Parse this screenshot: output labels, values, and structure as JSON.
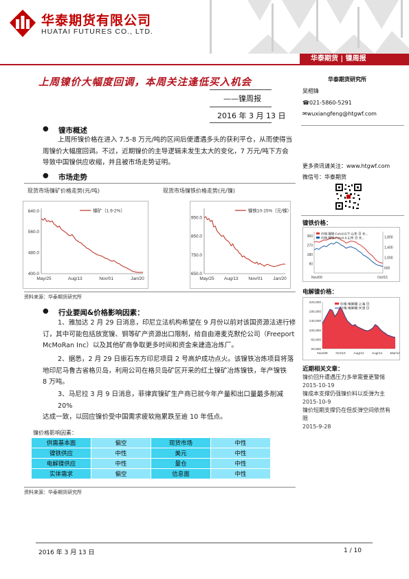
{
  "header": {
    "company_cn": "华泰期货有限公司",
    "company_en": "HUATAI FUTURES CO., LTD.",
    "banner": "华泰期货 | 镍周报",
    "brand_color": "#b4141e"
  },
  "title": {
    "main": "上周镍价大幅度回调，本周关注逢低买入机会",
    "type": "——镍周报",
    "date": "2016 年 3 月 13 日"
  },
  "sections": {
    "overview": {
      "heading": "镍市概述",
      "lines": [
        "上周所镍价格在进入 7.5-8 万元/吨的区间后便遭遇多头的获利平仓，从而使得当",
        "周镍价大幅度回调。不过，近期镍价的主导逻辑未发生太大的变化，7 万元/吨下方会",
        "导致中国镍供应收缩，并且被市场走势证明。"
      ]
    },
    "trend": {
      "heading": "市场走势",
      "caption_left": "现货市场镍矿价格走势(元/吨)",
      "caption_right": "现货市场镍铁价格走势(元/镍)",
      "source": "资料来源：华泰期货研究所"
    },
    "news": {
      "heading": "行业要闻&价格影响因素：",
      "p1": [
        "1、雅加达 2 月 29 日消息，印尼立法机构希望在 9 月份以前对该国资源法进行修",
        "订，其中可能包括放宽镍、铜等矿产资源出口限制，给自由港麦克默伦公司（Freeport",
        "McMoRan Inc）以及其他矿商争取更多时间和资金来建造冶炼厂。"
      ],
      "p2": [
        "2、据悉，2 月 29 日振石东方印尼项目 2 号高炉成功点火。该镍铁冶炼项目将落",
        "地印尼马鲁古省格贝岛，利用公司在格贝岛矿区开采的红土镍矿冶炼镍铁，年产镍铁",
        "8 万吨。"
      ],
      "p3": [
        "3、马尼拉 3 月 9 日消息，菲律宾镍矿生产商已就今年产量和出口量最多削减 20%",
        "达成一致，以回应镍价受中国需求疲软拖累跌至逾 10 年低点。"
      ]
    },
    "factors": {
      "caption": "镍价格影响因素：",
      "rows": [
        [
          "供需基本面",
          "偏空",
          "现货市场",
          "中性"
        ],
        [
          "镍铁供应",
          "中性",
          "美元",
          "中性"
        ],
        [
          "电解镍供应",
          "中性",
          "量仓",
          "中性"
        ],
        [
          "实体需求",
          "偏空",
          "信息面",
          "中性"
        ]
      ],
      "source": "资料来源：华泰期货研究所"
    }
  },
  "sidebar": {
    "institute": "华泰期货研究所",
    "analyst": "吴相锋",
    "phone": "021-5860-5291",
    "email": "wuxiangfeng@htgwf.com",
    "more_info": "更多资讯请关注：www.htgwf.com",
    "wechat": "微信号：华泰期货",
    "ferro_heading": "镍铁价格：",
    "elec_heading": "电解镍价格：",
    "recent_heading": "近期相关文章：",
    "articles": [
      {
        "title": "镍价回升遭遇压力多单需要更警惕",
        "date": "2015-10-19"
      },
      {
        "title": "镍成本支撑仍强镍价料以反弹为主",
        "date": "2015-10-9"
      },
      {
        "title": "镍价短期支撑仍在但反弹空间依然有限",
        "date": "2015-9-28"
      }
    ]
  },
  "footer": {
    "date": "2016 年 3 月 13 日",
    "page": "1 / 10"
  },
  "chart_data": [
    {
      "type": "line",
      "legend": "镍矿（1.9-2%）",
      "x_ticks": [
        "May/25",
        "Aug/13",
        "Nov/01",
        "Jan/20"
      ],
      "y_ticks": [
        400,
        480,
        560,
        640
      ],
      "ylim": [
        400,
        650
      ],
      "color": "#c0392b",
      "values": [
        610,
        605,
        612,
        600,
        603,
        598,
        602,
        590,
        585,
        578,
        582,
        570,
        565,
        560,
        555,
        548,
        545,
        550,
        540,
        530,
        525,
        520,
        518,
        510,
        505,
        498,
        495,
        490,
        484,
        480,
        476,
        472,
        470,
        468,
        465,
        460,
        458,
        455,
        450,
        448,
        450,
        445,
        440,
        438,
        432,
        428,
        425,
        422,
        418,
        415,
        410,
        408,
        406,
        405,
        405,
        405,
        405
      ]
    },
    {
      "type": "line",
      "legend": "镍铁10-15%（元/镍）",
      "x_ticks": [
        "May/25",
        "Aug/13",
        "Nov/01",
        "Jan/20"
      ],
      "y_ticks": [
        650,
        750,
        850,
        950
      ],
      "ylim": [
        650,
        1000
      ],
      "color": "#c0392b",
      "values": [
        950,
        955,
        940,
        945,
        930,
        935,
        900,
        905,
        880,
        870,
        860,
        850,
        855,
        840,
        830,
        825,
        815,
        800,
        810,
        790,
        780,
        775,
        760,
        755,
        740,
        745,
        735,
        730,
        728,
        720,
        715,
        710,
        705,
        712,
        700,
        705,
        700,
        695,
        690,
        698,
        700,
        695,
        692,
        690,
        688,
        690,
        692,
        695,
        698,
        700,
        702,
        700
      ]
    },
    {
      "type": "line",
      "legend": [
        "价格:镍铁:FeNi2以下:山东 日 元...",
        "价格:镍铁:FeNi4-6:山东 日 元..."
      ],
      "x_ticks": [
        "Nov/09",
        "Oct/15"
      ],
      "y_ticks_left": [
        90,
        180,
        270,
        360
      ],
      "y_ticks_right": [
        600,
        1000,
        1400,
        1800
      ],
      "series": [
        {
          "name": "价格:镍铁:FeNi2以下:山东 日 元...",
          "color": "#d63c3c",
          "values": [
            300,
            305,
            298,
            310,
            320,
            318,
            330,
            340,
            335,
            345,
            338,
            320,
            310,
            290,
            300,
            310,
            305,
            300,
            280,
            270,
            250,
            230,
            200,
            180,
            160,
            130,
            110,
            100,
            95
          ]
        },
        {
          "name": "价格:镍铁:FeNi4-6:山东 日 元...",
          "color": "#1f5fa8",
          "values": [
            1300,
            1350,
            1320,
            1400,
            1450,
            1420,
            1500,
            1550,
            1520,
            1600,
            1560,
            1480,
            1440,
            1360,
            1400,
            1420,
            1380,
            1340,
            1250,
            1200,
            1100,
            1050,
            980,
            900,
            820,
            750,
            700,
            680,
            650
          ]
        }
      ]
    },
    {
      "type": "area",
      "legend": [
        "价格:电解镍:上海 日",
        "价格:电解镍:天津 日"
      ],
      "x_ticks": [
        "Nov/09",
        "Oct/10",
        "Aug/12",
        "Aug/14",
        "Mar/16"
      ],
      "y_ticks": [
        20000,
        60000,
        100000,
        140000,
        180000,
        220000
      ],
      "series": [
        {
          "name": "价格:电解镍:上海 日",
          "color": "#e8323c",
          "values": [
            130000,
            150000,
            170000,
            190000,
            185000,
            160000,
            175000,
            200000,
            185000,
            160000,
            140000,
            130000,
            120000,
            125000,
            115000,
            110000,
            105000,
            100000,
            98000,
            102000,
            110000,
            125000,
            118000,
            105000,
            95000,
            88000,
            80000,
            76000,
            72000,
            70000
          ]
        },
        {
          "name": "价格:电解镍:天津 日",
          "color": "#1f3f8c",
          "values": [
            128000,
            148000,
            168000,
            188000,
            183000,
            158000,
            173000,
            198000,
            183000,
            158000,
            138000,
            128000,
            118000,
            123000,
            113000,
            108000,
            103000,
            98000,
            96000,
            100000,
            108000,
            123000,
            116000,
            103000,
            93000,
            86000,
            78000,
            74000,
            70000,
            68000
          ]
        }
      ]
    }
  ]
}
